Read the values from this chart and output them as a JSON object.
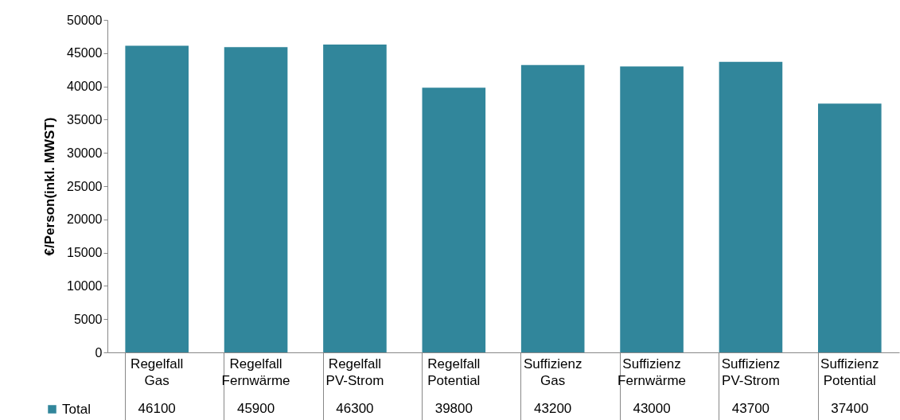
{
  "chart_data": {
    "type": "bar",
    "ylabel": "€/Person(inkl. MWST)",
    "categories": [
      "Regelfall Gas",
      "Regelfall Fernwärme",
      "Regelfall PV-Strom",
      "Regelfall Potential",
      "Suffizienz Gas",
      "Suffizienz Fernwärme",
      "Suffizienz PV-Strom",
      "Suffizienz Potential"
    ],
    "series": [
      {
        "name": "Total",
        "color": "#31869b",
        "values": [
          46100,
          45900,
          46300,
          39800,
          43200,
          43000,
          43700,
          37400
        ]
      }
    ],
    "ylim": [
      0,
      50000
    ],
    "yticks": [
      0,
      5000,
      10000,
      15000,
      20000,
      25000,
      30000,
      35000,
      40000,
      45000,
      50000
    ],
    "data_labels": true,
    "legend": "bottom left",
    "grid": false
  }
}
